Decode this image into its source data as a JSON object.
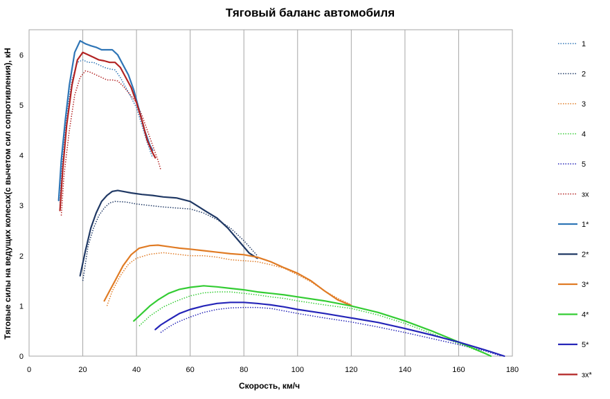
{
  "chart_data": {
    "type": "line",
    "title": "Тяговый баланс автомобиля",
    "xlabel": "Скорость, км/ч",
    "ylabel": "Тяговые силы на ведущих колесах(с вычетом сил сопротивления), кН",
    "xlim": [
      0,
      180
    ],
    "ylim": [
      0,
      6.5
    ],
    "xticks": [
      0,
      20,
      40,
      60,
      80,
      100,
      120,
      140,
      160,
      180
    ],
    "yticks": [
      0,
      1,
      2,
      3,
      4,
      5,
      6
    ],
    "grid": "vertical",
    "legend_position": "right",
    "series": [
      {
        "name": "1",
        "color": "#2e75b6",
        "style": "dotted",
        "points": [
          [
            11.5,
            3.0
          ],
          [
            12.5,
            4.0
          ],
          [
            14,
            4.8
          ],
          [
            16,
            5.5
          ],
          [
            18,
            5.85
          ],
          [
            20,
            5.9
          ],
          [
            22,
            5.85
          ],
          [
            24,
            5.85
          ],
          [
            26,
            5.8
          ],
          [
            28,
            5.75
          ],
          [
            30,
            5.72
          ],
          [
            32,
            5.7
          ],
          [
            34,
            5.55
          ],
          [
            36,
            5.35
          ],
          [
            38,
            5.15
          ],
          [
            40,
            4.95
          ],
          [
            42,
            4.6
          ],
          [
            44,
            4.25
          ],
          [
            46,
            3.95
          ]
        ]
      },
      {
        "name": "2",
        "color": "#1f3864",
        "style": "dotted",
        "points": [
          [
            20,
            1.5
          ],
          [
            22,
            2.2
          ],
          [
            24,
            2.55
          ],
          [
            26,
            2.8
          ],
          [
            28,
            2.95
          ],
          [
            30,
            3.05
          ],
          [
            32,
            3.08
          ],
          [
            36,
            3.07
          ],
          [
            40,
            3.03
          ],
          [
            45,
            3.0
          ],
          [
            50,
            2.97
          ],
          [
            55,
            2.95
          ],
          [
            60,
            2.93
          ],
          [
            65,
            2.85
          ],
          [
            70,
            2.72
          ],
          [
            75,
            2.55
          ],
          [
            80,
            2.3
          ],
          [
            85,
            2.0
          ]
        ]
      },
      {
        "name": "3",
        "color": "#e07b24",
        "style": "dotted",
        "points": [
          [
            29,
            1.0
          ],
          [
            31,
            1.3
          ],
          [
            34,
            1.6
          ],
          [
            37,
            1.83
          ],
          [
            40,
            1.95
          ],
          [
            45,
            2.03
          ],
          [
            50,
            2.06
          ],
          [
            55,
            2.03
          ],
          [
            60,
            2.0
          ],
          [
            65,
            2.0
          ],
          [
            70,
            1.97
          ],
          [
            75,
            1.92
          ],
          [
            80,
            1.9
          ],
          [
            85,
            1.88
          ],
          [
            90,
            1.82
          ],
          [
            95,
            1.75
          ],
          [
            100,
            1.62
          ],
          [
            105,
            1.48
          ],
          [
            110,
            1.3
          ],
          [
            115,
            1.15
          ],
          [
            120,
            1.02
          ]
        ]
      },
      {
        "name": "4",
        "color": "#33cc33",
        "style": "dotted",
        "points": [
          [
            41,
            0.6
          ],
          [
            45,
            0.8
          ],
          [
            50,
            0.98
          ],
          [
            55,
            1.1
          ],
          [
            60,
            1.2
          ],
          [
            65,
            1.26
          ],
          [
            70,
            1.28
          ],
          [
            75,
            1.28
          ],
          [
            80,
            1.25
          ],
          [
            85,
            1.22
          ],
          [
            90,
            1.18
          ],
          [
            95,
            1.15
          ],
          [
            100,
            1.1
          ],
          [
            110,
            1.02
          ],
          [
            120,
            0.95
          ],
          [
            130,
            0.82
          ],
          [
            140,
            0.65
          ],
          [
            150,
            0.45
          ],
          [
            160,
            0.25
          ],
          [
            170,
            0.05
          ],
          [
            172,
            0.0
          ]
        ]
      },
      {
        "name": "5",
        "color": "#2424b8",
        "style": "dotted",
        "points": [
          [
            49,
            0.47
          ],
          [
            52,
            0.58
          ],
          [
            55,
            0.67
          ],
          [
            60,
            0.78
          ],
          [
            65,
            0.87
          ],
          [
            70,
            0.93
          ],
          [
            75,
            0.96
          ],
          [
            80,
            0.97
          ],
          [
            85,
            0.97
          ],
          [
            90,
            0.95
          ],
          [
            95,
            0.9
          ],
          [
            100,
            0.85
          ],
          [
            110,
            0.76
          ],
          [
            120,
            0.68
          ],
          [
            130,
            0.58
          ],
          [
            140,
            0.47
          ],
          [
            150,
            0.35
          ],
          [
            160,
            0.23
          ],
          [
            170,
            0.1
          ],
          [
            176,
            0.0
          ]
        ]
      },
      {
        "name": "зх",
        "color": "#b22222",
        "style": "dotted",
        "points": [
          [
            12,
            2.8
          ],
          [
            13,
            3.6
          ],
          [
            15,
            4.5
          ],
          [
            17,
            5.2
          ],
          [
            19,
            5.55
          ],
          [
            21,
            5.68
          ],
          [
            23,
            5.65
          ],
          [
            25,
            5.6
          ],
          [
            27,
            5.55
          ],
          [
            29,
            5.5
          ],
          [
            31,
            5.5
          ],
          [
            33,
            5.48
          ],
          [
            35,
            5.38
          ],
          [
            37,
            5.25
          ],
          [
            40,
            5.05
          ],
          [
            42,
            4.8
          ],
          [
            44,
            4.5
          ],
          [
            46,
            4.2
          ],
          [
            48,
            3.9
          ],
          [
            49,
            3.72
          ]
        ]
      },
      {
        "name": "1*",
        "color": "#2e75b6",
        "style": "solid",
        "points": [
          [
            11,
            3.1
          ],
          [
            12,
            3.9
          ],
          [
            13.5,
            4.7
          ],
          [
            15,
            5.4
          ],
          [
            17,
            6.05
          ],
          [
            19,
            6.28
          ],
          [
            21,
            6.22
          ],
          [
            23,
            6.18
          ],
          [
            25,
            6.15
          ],
          [
            27,
            6.1
          ],
          [
            29,
            6.1
          ],
          [
            31,
            6.1
          ],
          [
            33,
            6.0
          ],
          [
            35,
            5.8
          ],
          [
            37,
            5.6
          ],
          [
            39,
            5.3
          ],
          [
            41,
            4.9
          ],
          [
            43,
            4.5
          ],
          [
            45,
            4.2
          ],
          [
            46,
            4.1
          ]
        ]
      },
      {
        "name": "2*",
        "color": "#1f3864",
        "style": "solid",
        "points": [
          [
            19,
            1.6
          ],
          [
            21,
            2.1
          ],
          [
            23,
            2.55
          ],
          [
            25,
            2.85
          ],
          [
            27,
            3.08
          ],
          [
            29,
            3.2
          ],
          [
            31,
            3.28
          ],
          [
            33,
            3.3
          ],
          [
            35,
            3.28
          ],
          [
            38,
            3.25
          ],
          [
            42,
            3.22
          ],
          [
            46,
            3.2
          ],
          [
            50,
            3.17
          ],
          [
            55,
            3.15
          ],
          [
            60,
            3.08
          ],
          [
            63,
            2.98
          ],
          [
            66,
            2.88
          ],
          [
            70,
            2.75
          ],
          [
            74,
            2.55
          ],
          [
            78,
            2.3
          ],
          [
            82,
            2.05
          ],
          [
            85,
            1.95
          ]
        ]
      },
      {
        "name": "3*",
        "color": "#e07b24",
        "style": "solid",
        "points": [
          [
            28,
            1.1
          ],
          [
            30,
            1.3
          ],
          [
            32,
            1.5
          ],
          [
            35,
            1.8
          ],
          [
            38,
            2.02
          ],
          [
            41,
            2.15
          ],
          [
            45,
            2.2
          ],
          [
            48,
            2.21
          ],
          [
            52,
            2.18
          ],
          [
            56,
            2.15
          ],
          [
            60,
            2.13
          ],
          [
            65,
            2.1
          ],
          [
            70,
            2.07
          ],
          [
            75,
            2.04
          ],
          [
            80,
            2.02
          ],
          [
            85,
            1.97
          ],
          [
            90,
            1.88
          ],
          [
            95,
            1.76
          ],
          [
            100,
            1.65
          ],
          [
            105,
            1.5
          ],
          [
            110,
            1.3
          ],
          [
            115,
            1.12
          ],
          [
            120,
            1.01
          ]
        ]
      },
      {
        "name": "4*",
        "color": "#33cc33",
        "style": "solid",
        "points": [
          [
            39,
            0.7
          ],
          [
            42,
            0.85
          ],
          [
            45,
            1.0
          ],
          [
            48,
            1.12
          ],
          [
            52,
            1.25
          ],
          [
            56,
            1.33
          ],
          [
            60,
            1.37
          ],
          [
            65,
            1.4
          ],
          [
            70,
            1.38
          ],
          [
            75,
            1.35
          ],
          [
            80,
            1.32
          ],
          [
            85,
            1.28
          ],
          [
            90,
            1.25
          ],
          [
            95,
            1.22
          ],
          [
            100,
            1.18
          ],
          [
            110,
            1.1
          ],
          [
            120,
            1.0
          ],
          [
            130,
            0.87
          ],
          [
            140,
            0.7
          ],
          [
            150,
            0.5
          ],
          [
            160,
            0.28
          ],
          [
            170,
            0.05
          ],
          [
            172,
            0.0
          ]
        ]
      },
      {
        "name": "5*",
        "color": "#2424b8",
        "style": "solid",
        "points": [
          [
            47,
            0.53
          ],
          [
            49,
            0.62
          ],
          [
            52,
            0.72
          ],
          [
            56,
            0.85
          ],
          [
            60,
            0.93
          ],
          [
            65,
            1.0
          ],
          [
            70,
            1.05
          ],
          [
            75,
            1.07
          ],
          [
            80,
            1.07
          ],
          [
            85,
            1.05
          ],
          [
            90,
            1.02
          ],
          [
            95,
            0.98
          ],
          [
            100,
            0.93
          ],
          [
            110,
            0.85
          ],
          [
            120,
            0.76
          ],
          [
            130,
            0.67
          ],
          [
            140,
            0.55
          ],
          [
            150,
            0.42
          ],
          [
            160,
            0.28
          ],
          [
            170,
            0.12
          ],
          [
            177,
            0.0
          ]
        ]
      },
      {
        "name": "зх*",
        "color": "#b22222",
        "style": "solid",
        "points": [
          [
            11.5,
            2.9
          ],
          [
            12.5,
            3.7
          ],
          [
            14,
            4.6
          ],
          [
            16,
            5.4
          ],
          [
            18,
            5.9
          ],
          [
            20,
            6.05
          ],
          [
            22,
            6.0
          ],
          [
            24,
            5.95
          ],
          [
            26,
            5.9
          ],
          [
            28,
            5.88
          ],
          [
            30,
            5.85
          ],
          [
            32,
            5.85
          ],
          [
            34,
            5.75
          ],
          [
            36,
            5.55
          ],
          [
            38,
            5.35
          ],
          [
            40,
            5.05
          ],
          [
            42,
            4.7
          ],
          [
            44,
            4.3
          ],
          [
            46,
            4.05
          ],
          [
            47,
            3.95
          ]
        ]
      }
    ]
  }
}
